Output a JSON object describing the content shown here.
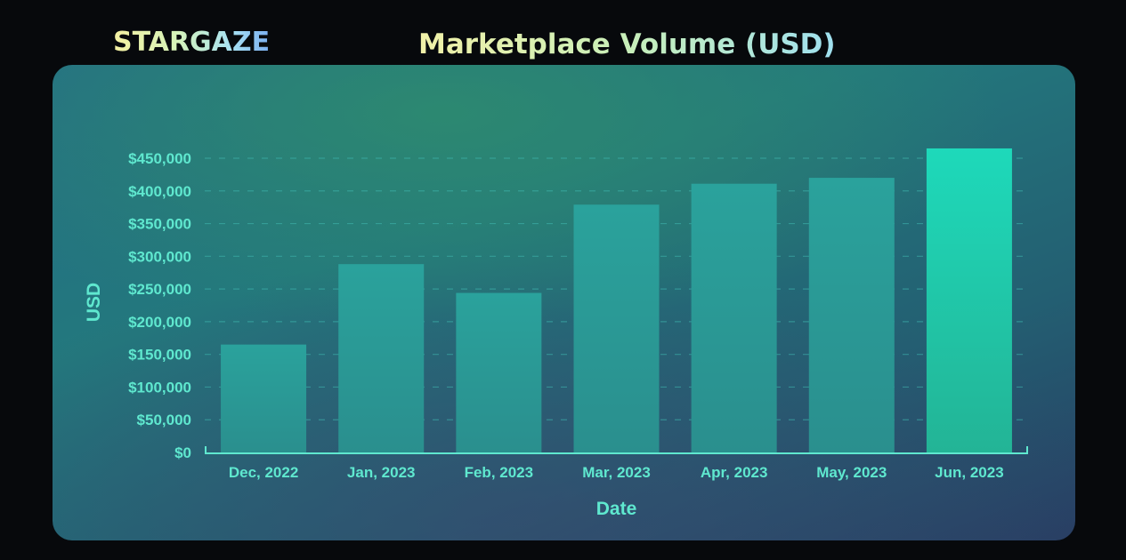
{
  "header": {
    "logo_text": "STARGAZE",
    "chart_title": "Marketplace Volume (USD)"
  },
  "colors": {
    "bar_fill_top": "#2a9c98",
    "bar_fill_bottom": "#2a8f90",
    "highlight_bar_top": "#1ed7b8",
    "highlight_bar_bottom": "#22b79a",
    "tick_text": "#5fe8cf",
    "gridline": "#3fb8b0"
  },
  "chart_data": {
    "type": "bar",
    "title": "Marketplace Volume (USD)",
    "xlabel": "Date",
    "ylabel": "USD",
    "categories": [
      "Dec, 2022",
      "Jan, 2023",
      "Feb, 2023",
      "Mar, 2023",
      "Apr, 2023",
      "May, 2023",
      "Jun, 2023"
    ],
    "values": [
      165000,
      288000,
      244000,
      379000,
      411000,
      420000,
      465000
    ],
    "ylim": [
      0,
      450000
    ],
    "yticks": [
      0,
      50000,
      100000,
      150000,
      200000,
      250000,
      300000,
      350000,
      400000,
      450000
    ],
    "ytick_labels": [
      "$0",
      "$50,000",
      "$100,000",
      "$150,000",
      "$200,000",
      "$250,000",
      "$300,000",
      "$350,000",
      "$400,000",
      "$450,000"
    ],
    "grid": "horizontal-dashed",
    "highlight_index": 6
  }
}
